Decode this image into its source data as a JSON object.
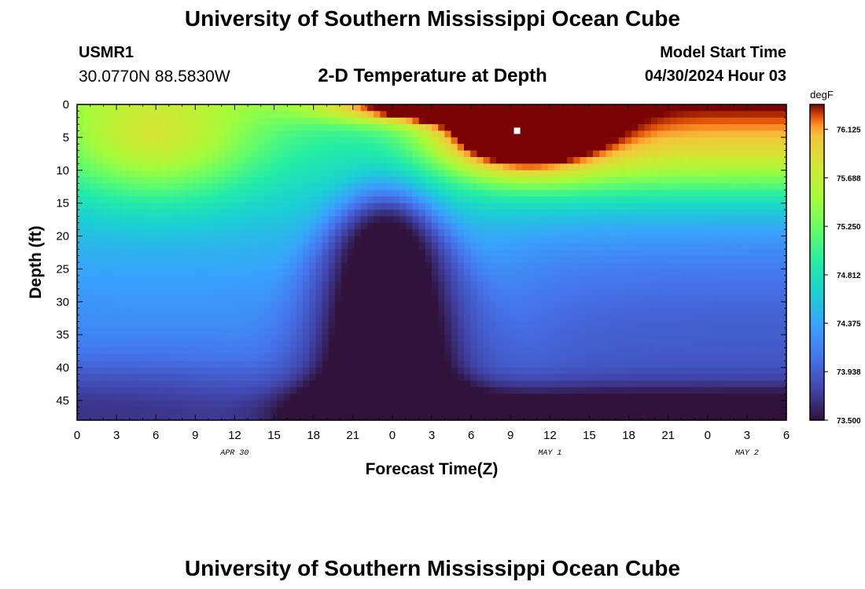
{
  "page": {
    "title": "University of Southern Mississippi Ocean Cube",
    "footer_title": "University of Southern Mississippi Ocean Cube",
    "station_id": "USMR1",
    "station_coords": "30.0770N  88.5830W",
    "plot_title": "2-D Temperature at Depth",
    "model_start_label": "Model Start Time",
    "model_start_value": "04/30/2024 Hour 03"
  },
  "chart_data": {
    "type": "heatmap",
    "title": "2-D Temperature at Depth",
    "xlabel": "Forecast Time(Z)",
    "ylabel": "Depth (ft)",
    "x_tick_labels": [
      "0",
      "3",
      "6",
      "9",
      "12",
      "15",
      "18",
      "21",
      "0",
      "3",
      "6",
      "9",
      "12",
      "15",
      "18",
      "21",
      "0",
      "3",
      "6"
    ],
    "x_range_hours": [
      0,
      54
    ],
    "date_labels": [
      {
        "label": "APR 30",
        "hour": 12
      },
      {
        "label": "MAY 1",
        "hour": 36
      },
      {
        "label": "MAY 2",
        "hour": 51
      }
    ],
    "y_tick_labels": [
      "0",
      "5",
      "10",
      "15",
      "20",
      "25",
      "30",
      "35",
      "40",
      "45"
    ],
    "y_range_ft": [
      0,
      48
    ],
    "y_inverted": true,
    "colorbar": {
      "unit": "degF",
      "min": 73.5,
      "max": 76.35,
      "tick_labels": [
        "76.125",
        "75.688",
        "75.250",
        "74.812",
        "74.375",
        "73.938",
        "73.500"
      ],
      "tick_values": [
        76.125,
        75.688,
        75.25,
        74.812,
        74.375,
        73.938,
        73.5
      ]
    },
    "max_marker": {
      "hour": 33.5,
      "depth_ft": 4
    }
  }
}
